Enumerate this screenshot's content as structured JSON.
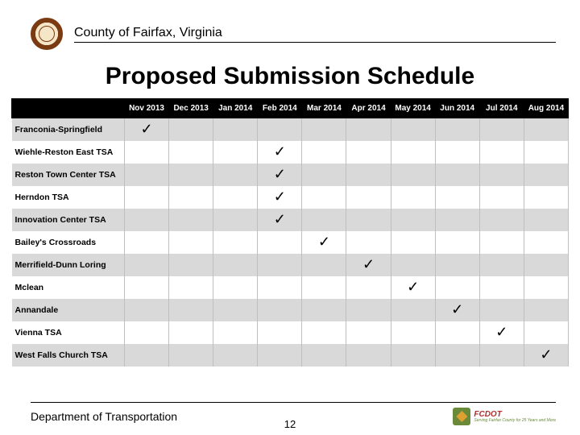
{
  "header": {
    "org": "County of Fairfax, Virginia"
  },
  "title": "Proposed Submission Schedule",
  "table": {
    "columns": [
      "Nov 2013",
      "Dec 2013",
      "Jan 2014",
      "Feb 2014",
      "Mar 2014",
      "Apr 2014",
      "May 2014",
      "Jun 2014",
      "Jul 2014",
      "Aug 2014"
    ],
    "rows": [
      {
        "label": "Franconia-Springfield",
        "col": 0
      },
      {
        "label": "Wiehle-Reston East TSA",
        "col": 3
      },
      {
        "label": "Reston Town Center TSA",
        "col": 3
      },
      {
        "label": "Herndon TSA",
        "col": 3
      },
      {
        "label": "Innovation Center TSA",
        "col": 3
      },
      {
        "label": "Bailey's Crossroads",
        "col": 4
      },
      {
        "label": "Merrifield-Dunn Loring",
        "col": 5
      },
      {
        "label": "Mclean",
        "col": 6
      },
      {
        "label": "Annandale",
        "col": 7
      },
      {
        "label": "Vienna TSA",
        "col": 8
      },
      {
        "label": "West Falls Church TSA",
        "col": 9
      }
    ],
    "check_glyph": "✓",
    "colors": {
      "header_bg": "#000000",
      "header_fg": "#ffffff",
      "row_even_bg": "#d9d9d9",
      "row_odd_bg": "#ffffff",
      "grid": "#bfbfbf"
    }
  },
  "footer": {
    "dept": "Department of Transportation",
    "logo_text": "FCDOT",
    "logo_subtext": "Serving Fairfax County for 25 Years and More"
  },
  "page_number": "12"
}
